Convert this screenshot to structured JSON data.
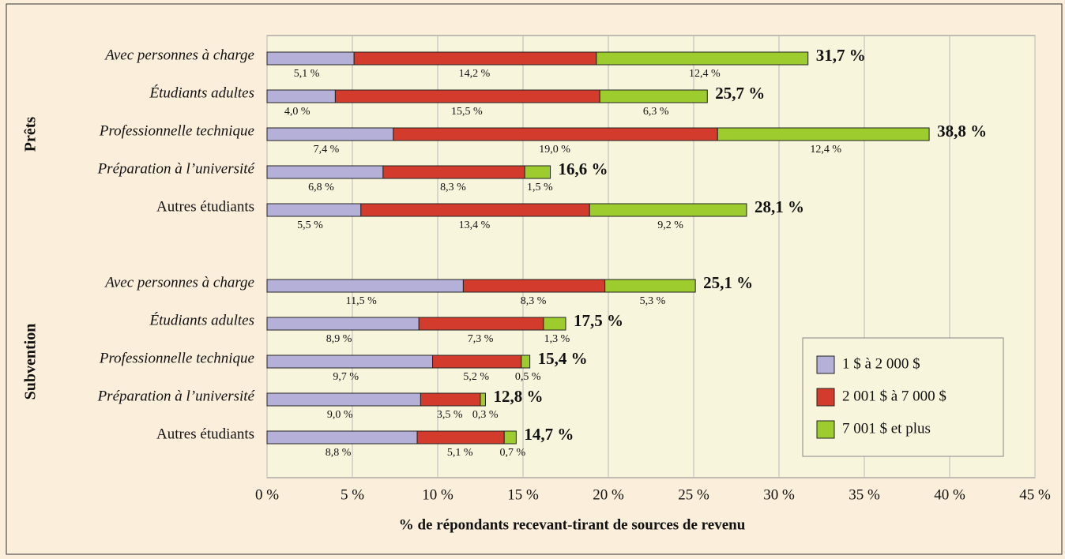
{
  "chart_data": {
    "type": "stacked_bar",
    "orientation": "horizontal",
    "x_label": "% de répondants recevant-tirant de sources de revenu",
    "xlim": [
      0,
      45
    ],
    "xticks": [
      {
        "value": 0,
        "label": "0 %"
      },
      {
        "value": 5,
        "label": "5 %"
      },
      {
        "value": 10,
        "label": "10 %"
      },
      {
        "value": 15,
        "label": "15 %"
      },
      {
        "value": 20,
        "label": "20 %"
      },
      {
        "value": 25,
        "label": "25 %"
      },
      {
        "value": 30,
        "label": "30 %"
      },
      {
        "value": 35,
        "label": "35 %"
      },
      {
        "value": 40,
        "label": "40 %"
      },
      {
        "value": 45,
        "label": "45 %"
      }
    ],
    "grid": true,
    "legend": "lower right",
    "series": [
      {
        "name": "1 $ à 2 000 $",
        "color": "#b4b0d8"
      },
      {
        "name": "2 001 $ à 7 000 $",
        "color": "#d33b2c"
      },
      {
        "name": "7 001 $ et plus",
        "color": "#9ccc2e"
      }
    ],
    "groups": [
      {
        "name": "Prêts",
        "categories": [
          "Avec personnes à charge",
          "Étudiants adultes",
          "Professionnelle technique",
          "Préparation à l’université",
          "Autres étudiants"
        ],
        "values": [
          [
            5.1,
            4.0,
            7.4,
            6.8,
            5.5
          ],
          [
            14.2,
            15.5,
            19.0,
            8.3,
            13.4
          ],
          [
            12.4,
            6.3,
            12.4,
            1.5,
            9.2
          ]
        ],
        "value_labels": [
          [
            "5,1 %",
            "4,0 %",
            "7,4 %",
            "6,8 %",
            "5,5 %"
          ],
          [
            "14,2 %",
            "15,5 %",
            "19,0 %",
            "8,3 %",
            "13,4 %"
          ],
          [
            "12,4 %",
            "6,3 %",
            "12,4 %",
            "1,5 %",
            "9,2 %"
          ]
        ],
        "totals": [
          31.7,
          25.7,
          38.8,
          16.6,
          28.1
        ],
        "total_labels": [
          "31,7 %",
          "25,7 %",
          "38,8 %",
          "16,6 %",
          "28,1 %"
        ]
      },
      {
        "name": "Subvention",
        "categories": [
          "Avec personnes à charge",
          "Étudiants adultes",
          "Professionnelle technique",
          "Préparation à l’université",
          "Autres étudiants"
        ],
        "values": [
          [
            11.5,
            8.9,
            9.7,
            9.0,
            8.8
          ],
          [
            8.3,
            7.3,
            5.2,
            3.5,
            5.1
          ],
          [
            5.3,
            1.3,
            0.5,
            0.3,
            0.7
          ]
        ],
        "value_labels": [
          [
            "11,5 %",
            "8,9 %",
            "9,7 %",
            "9,0 %",
            "8,8 %"
          ],
          [
            "8,3 %",
            "7,3 %",
            "5,2 %",
            "3,5 %",
            "5,1 %"
          ],
          [
            "5,3 %",
            "1,3 %",
            "0,5 %",
            "0,3 %",
            "0,7 %"
          ]
        ],
        "totals": [
          25.1,
          17.5,
          15.4,
          12.8,
          14.7
        ],
        "total_labels": [
          "25,1 %",
          "17,5 %",
          "15,4 %",
          "12,8 %",
          "14,7 %"
        ]
      }
    ]
  }
}
